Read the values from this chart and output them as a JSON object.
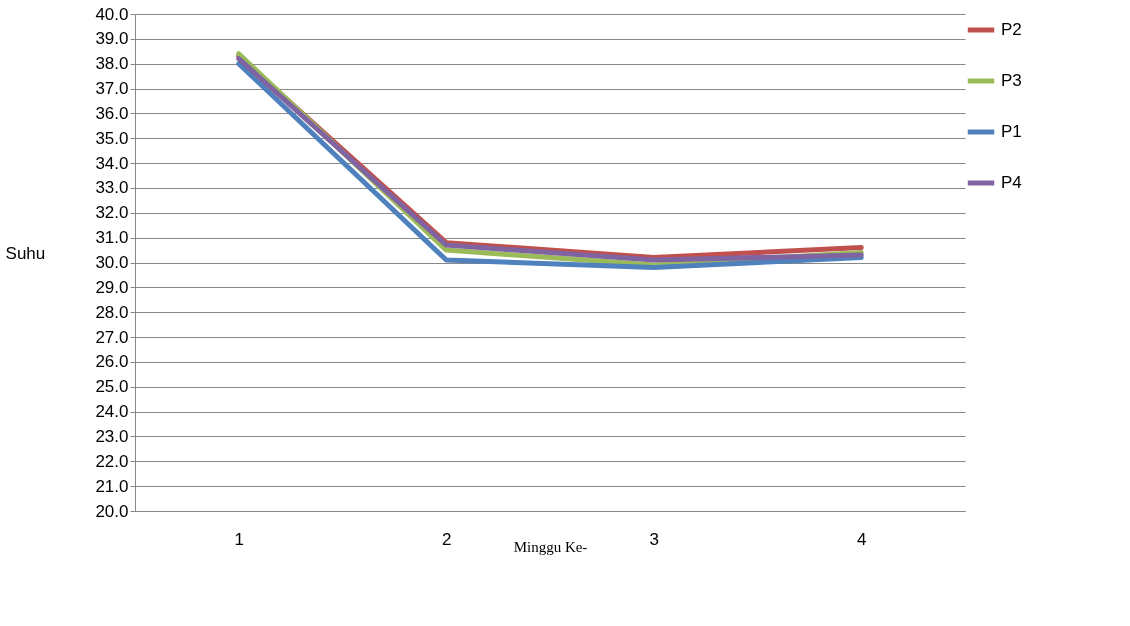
{
  "chart_data": {
    "type": "line",
    "xlabel": "Minggu Ke-",
    "ylabel": "Suhu",
    "categories": [
      "1",
      "2",
      "3",
      "4"
    ],
    "series": [
      {
        "name": "P2",
        "color": "#c0504d",
        "values": [
          38.3,
          30.8,
          30.2,
          30.6
        ]
      },
      {
        "name": "P3",
        "color": "#9bbb59",
        "values": [
          38.4,
          30.5,
          29.9,
          30.4
        ]
      },
      {
        "name": "P1",
        "color": "#4f81bd",
        "values": [
          38.0,
          30.1,
          29.8,
          30.2
        ]
      },
      {
        "name": "P4",
        "color": "#8064a2",
        "values": [
          38.2,
          30.7,
          30.1,
          30.3
        ]
      }
    ],
    "ylim": [
      20,
      40
    ],
    "yticks": [
      {
        "value": 20,
        "label": "20.0"
      },
      {
        "value": 21,
        "label": "21.0"
      },
      {
        "value": 22,
        "label": "22.0"
      },
      {
        "value": 23,
        "label": "23.0"
      },
      {
        "value": 24,
        "label": "24.0"
      },
      {
        "value": 25,
        "label": "25.0"
      },
      {
        "value": 26,
        "label": "26.0"
      },
      {
        "value": 27,
        "label": "27.0"
      },
      {
        "value": 28,
        "label": "28.0"
      },
      {
        "value": 29,
        "label": "29.0"
      },
      {
        "value": 30,
        "label": "30.0"
      },
      {
        "value": 31,
        "label": "31.0"
      },
      {
        "value": 32,
        "label": "32.0"
      },
      {
        "value": 33,
        "label": "33.0"
      },
      {
        "value": 34,
        "label": "34.0"
      },
      {
        "value": 35,
        "label": "35.0"
      },
      {
        "value": 36,
        "label": "36.0"
      },
      {
        "value": 37,
        "label": "37.0"
      },
      {
        "value": 38,
        "label": "38.0"
      },
      {
        "value": 39,
        "label": "39.0"
      },
      {
        "value": 40,
        "label": "40.0"
      }
    ],
    "grid": "y",
    "legend": "right",
    "marker": "none",
    "line_style": "solid"
  }
}
